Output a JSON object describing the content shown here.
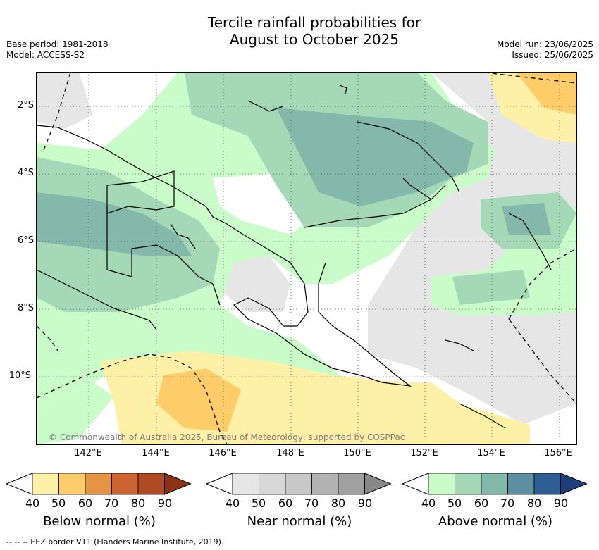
{
  "title_line1": "Tercile rainfall probabilities for",
  "title_line2": "August to October 2025",
  "base_period": "Base period: 1981-2018",
  "model": "Model: ACCESS-S2",
  "model_run": "Model run: 23/06/2025",
  "issued": "Issued: 25/06/2025",
  "lat_labels": [
    "2°S",
    "4°S",
    "6°S",
    "8°S",
    "10°S"
  ],
  "lon_labels": [
    "142°E",
    "144°E",
    "146°E",
    "148°E",
    "150°E",
    "152°E",
    "154°E",
    "156°E"
  ],
  "copyright": "© Commonwealth of Australia 2025, Bureau of Meteorology, supported by COSPPac",
  "colorbars": [
    {
      "label": "Below normal (%)",
      "ticks": [
        "40",
        "50",
        "60",
        "70",
        "80",
        "90"
      ],
      "colors": [
        "#fff0a8",
        "#fecd6a",
        "#e39544",
        "#cc6432",
        "#b04a24",
        "#8c3218"
      ]
    },
    {
      "label": "Near normal (%)",
      "ticks": [
        "40",
        "50",
        "60",
        "70",
        "80",
        "90"
      ],
      "colors": [
        "#e6e6e6",
        "#d7d7d7",
        "#c8c8c8",
        "#b2b2b2",
        "#a0a0a0",
        "#888888"
      ]
    },
    {
      "label": "Above normal (%)",
      "ticks": [
        "40",
        "50",
        "60",
        "70",
        "80",
        "90"
      ],
      "colors": [
        "#c9fcc8",
        "#a5d8b7",
        "#84b8aa",
        "#5c8fa0",
        "#2e5e94",
        "#1c3f78"
      ]
    }
  ],
  "footnote": "--  --  -- EEZ border V11 (Flanders Marine Institute, 2019)."
}
